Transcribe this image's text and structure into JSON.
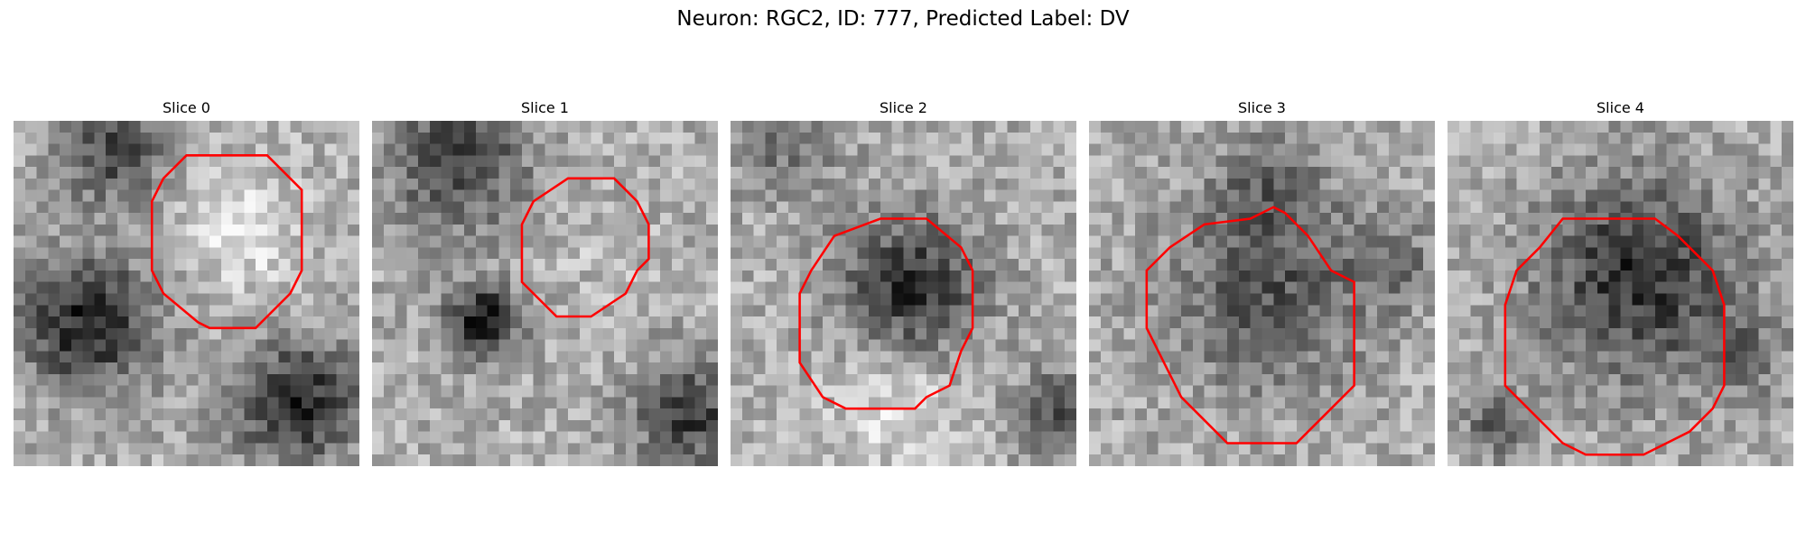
{
  "figure": {
    "title": "Neuron: RGC2, ID: 777, Predicted Label: DV"
  },
  "panels": [
    {
      "title": "Slice 0"
    },
    {
      "title": "Slice 1"
    },
    {
      "title": "Slice 2"
    },
    {
      "title": "Slice 3"
    },
    {
      "title": "Slice 4"
    }
  ],
  "contour_color": "#ff0000"
}
